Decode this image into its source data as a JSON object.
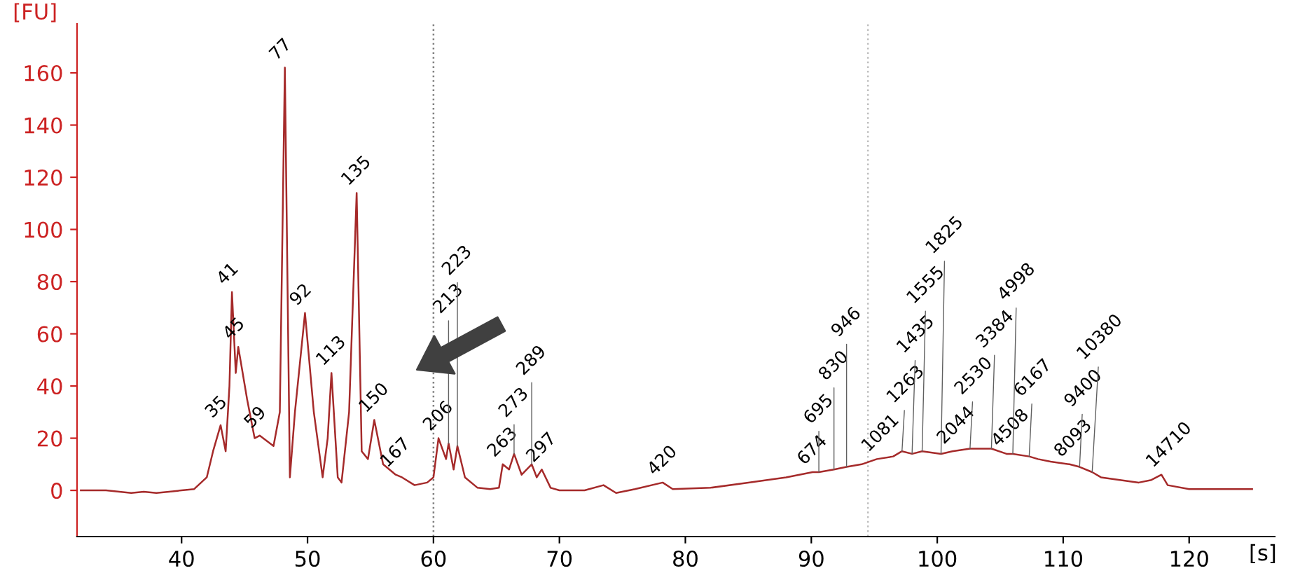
{
  "chart_data": {
    "type": "line",
    "xlabel": "[s]",
    "ylabel": "[FU]",
    "xlim": [
      31.7,
      126.8
    ],
    "ylim": [
      -17.7,
      178.8
    ],
    "xticks": [
      40,
      50,
      60,
      70,
      80,
      90,
      100,
      110,
      120
    ],
    "yticks": [
      0,
      20,
      40,
      60,
      80,
      100,
      120,
      140,
      160
    ],
    "grid": false,
    "line_style": "solid",
    "ref_lines": [
      {
        "axis": "x",
        "value": 60,
        "color": "#808080",
        "line_style": "dotted"
      },
      {
        "axis": "x",
        "value": 94.5,
        "color": "#c0c0c0",
        "line_style": "dotted"
      }
    ],
    "series": [
      {
        "color": "#a52a2a",
        "x": [
          32,
          34,
          36,
          37,
          38,
          39,
          40,
          41,
          42,
          42.5,
          43.1,
          43.5,
          43.8,
          44.0,
          44.3,
          44.5,
          45.2,
          45.8,
          46.2,
          47.3,
          47.8,
          48.2,
          48.6,
          49.0,
          49.8,
          50.5,
          51.2,
          51.6,
          51.9,
          52.4,
          52.7,
          53.3,
          53.9,
          54.3,
          54.8,
          55.3,
          56.0,
          57.0,
          57.5,
          58.5,
          59.5,
          60.0,
          60.4,
          61.0,
          61.2,
          61.6,
          61.9,
          62.5,
          63.5,
          64.5,
          65.2,
          65.5,
          66.0,
          66.4,
          67.0,
          67.8,
          68.2,
          68.6,
          69.3,
          70,
          72,
          73.5,
          74.5,
          76,
          78.2,
          79,
          82,
          85,
          88,
          90.1,
          90.6,
          91.8,
          92.8,
          94,
          95.2,
          96.5,
          97.2,
          98.0,
          98.8,
          100.3,
          101.2,
          102.6,
          104.3,
          105.5,
          106.0,
          107.3,
          108,
          109,
          110.5,
          111.3,
          112.3,
          113,
          114.5,
          116,
          117,
          117.8,
          118.3,
          120,
          122,
          125
        ],
        "values": [
          0,
          0,
          -1,
          -0.5,
          -1,
          -0.5,
          0,
          0.5,
          5,
          15,
          25,
          15,
          40,
          76,
          45,
          55,
          35,
          20,
          21,
          17,
          30,
          162,
          5,
          30,
          68,
          30,
          5,
          20,
          45,
          5,
          3,
          30,
          114,
          15,
          12,
          27,
          10,
          6,
          5,
          2,
          3,
          5,
          20,
          12,
          18,
          8,
          17,
          5,
          1,
          0.5,
          1,
          10,
          8,
          14,
          6,
          10,
          5,
          8,
          1,
          0,
          0,
          2,
          -1,
          0.5,
          3,
          0.5,
          1,
          3,
          5,
          7,
          7,
          8,
          9,
          10,
          12,
          13,
          15,
          14,
          15,
          14,
          15,
          16,
          16,
          14,
          14,
          13,
          12,
          11,
          10,
          9,
          7,
          5,
          4,
          3,
          4,
          6,
          2,
          0.5,
          0.5,
          0.5
        ]
      }
    ],
    "annotations": [
      {
        "text": "35",
        "x": 43.1,
        "y": 25
      },
      {
        "text": "41",
        "x": 44.0,
        "y": 76
      },
      {
        "text": "45",
        "x": 44.5,
        "y": 55
      },
      {
        "text": "59",
        "x": 46.2,
        "y": 21
      },
      {
        "text": "77",
        "x": 48.2,
        "y": 162
      },
      {
        "text": "92",
        "x": 49.8,
        "y": 68
      },
      {
        "text": "113",
        "x": 51.9,
        "y": 45
      },
      {
        "text": "135",
        "x": 53.9,
        "y": 114
      },
      {
        "text": "150",
        "x": 55.3,
        "y": 27
      },
      {
        "text": "167",
        "x": 57.0,
        "y": 6
      },
      {
        "text": "206",
        "x": 60.4,
        "y": 20
      },
      {
        "text": "213",
        "x": 61.2,
        "y": 18
      },
      {
        "text": "223",
        "x": 61.9,
        "y": 17
      },
      {
        "text": "263",
        "x": 65.5,
        "y": 10
      },
      {
        "text": "273",
        "x": 66.4,
        "y": 14
      },
      {
        "text": "289",
        "x": 67.8,
        "y": 10
      },
      {
        "text": "297",
        "x": 68.6,
        "y": 8
      },
      {
        "text": "420",
        "x": 78.2,
        "y": 3
      },
      {
        "text": "674",
        "x": 90.1,
        "y": 7
      },
      {
        "text": "695",
        "x": 90.6,
        "y": 7
      },
      {
        "text": "830",
        "x": 91.8,
        "y": 8
      },
      {
        "text": "946",
        "x": 92.8,
        "y": 9
      },
      {
        "text": "1081",
        "x": 95.2,
        "y": 12
      },
      {
        "text": "1263",
        "x": 97.2,
        "y": 15
      },
      {
        "text": "1435",
        "x": 98.0,
        "y": 14
      },
      {
        "text": "1555",
        "x": 98.8,
        "y": 15
      },
      {
        "text": "1825",
        "x": 100.3,
        "y": 14
      },
      {
        "text": "2044",
        "x": 101.2,
        "y": 15
      },
      {
        "text": "2530",
        "x": 102.6,
        "y": 16
      },
      {
        "text": "3384",
        "x": 104.3,
        "y": 16
      },
      {
        "text": "4508",
        "x": 105.5,
        "y": 14
      },
      {
        "text": "4998",
        "x": 106.0,
        "y": 14
      },
      {
        "text": "6167",
        "x": 107.3,
        "y": 13
      },
      {
        "text": "8093",
        "x": 110.5,
        "y": 10
      },
      {
        "text": "9400",
        "x": 111.3,
        "y": 9
      },
      {
        "text": "10380",
        "x": 112.3,
        "y": 7
      },
      {
        "text": "14710",
        "x": 117.8,
        "y": 6
      }
    ]
  }
}
